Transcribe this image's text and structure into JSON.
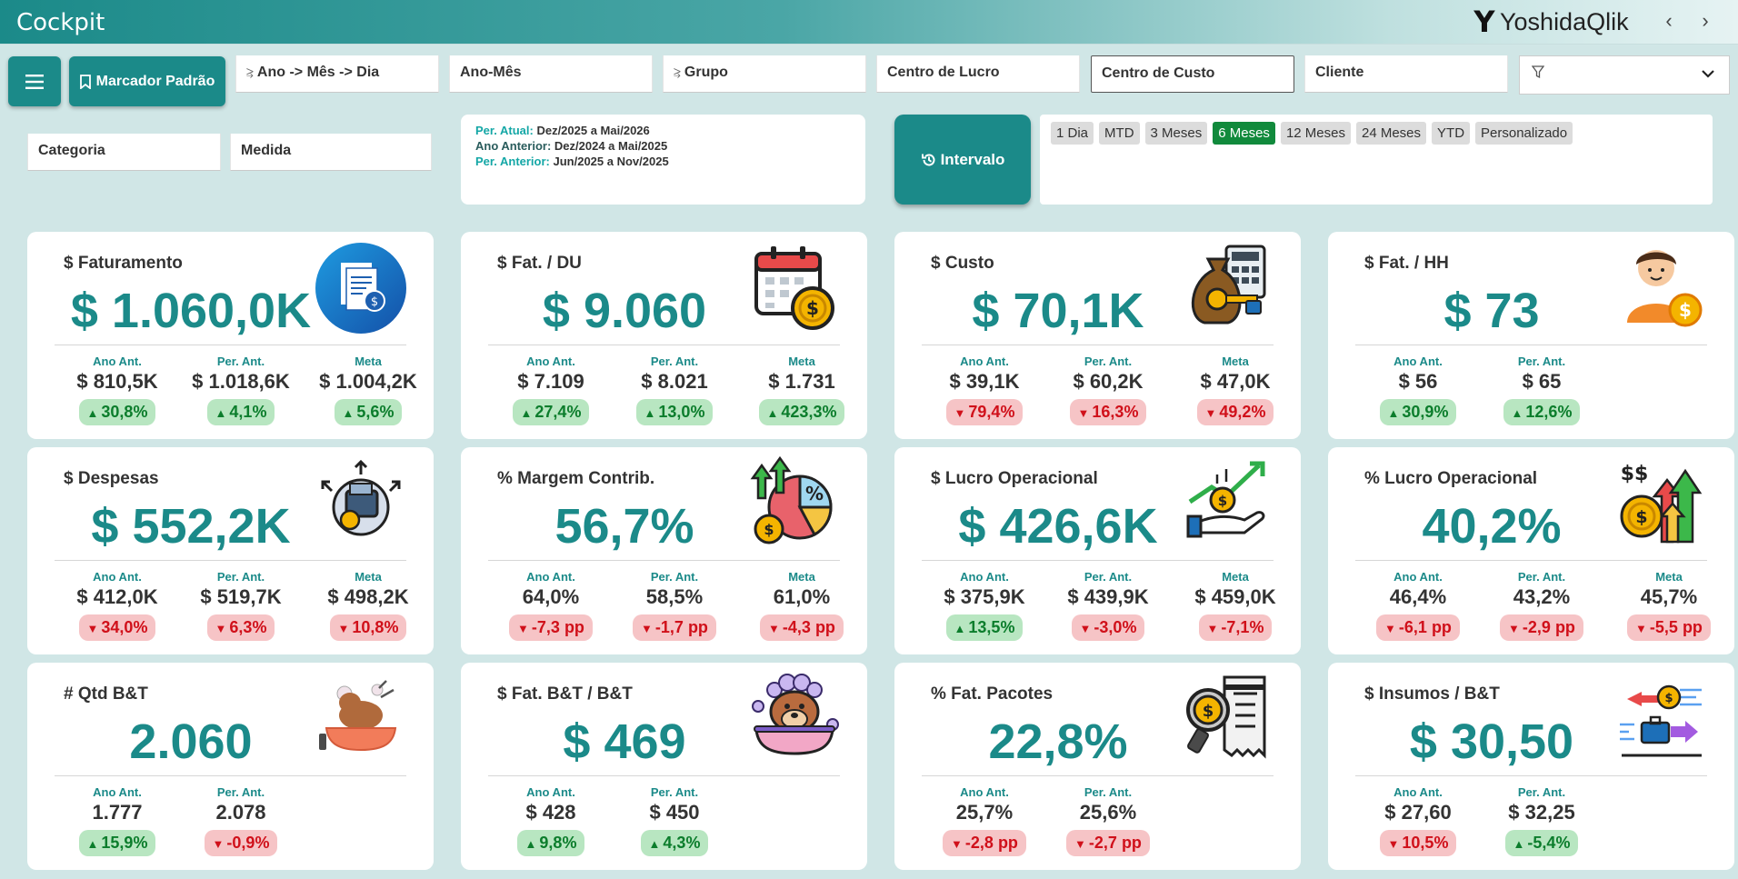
{
  "app": {
    "title": "Cockpit",
    "brand_logo": "Y",
    "brand_name": "YoshidaQlik",
    "nav_back": "‹",
    "nav_forward": "›"
  },
  "toolbar": {
    "menu_icon": "menu-icon",
    "bookmark_label": "Marcador Padrão"
  },
  "filters": {
    "ano_mes_dia": "Ano -> Mês -> Dia",
    "ano_mes": "Ano-Mês",
    "grupo": "Grupo",
    "centro_lucro": "Centro de Lucro",
    "centro_custo": "Centro de Custo",
    "cliente": "Cliente",
    "categoria": "Categoria",
    "medida": "Medida",
    "filter_dropdown_icon": "funnel-icon"
  },
  "period": {
    "atual_label": "Per. Atual:",
    "atual_value": "Dez/2025 a Mai/2026",
    "ano_anterior_label": "Ano Anterior:",
    "ano_anterior_value": "Dez/2024 a Mai/2025",
    "anterior_label": "Per. Anterior:",
    "anterior_value": "Jun/2025 a Nov/2025"
  },
  "interval": {
    "label": "Intervalo",
    "icon": "history-icon"
  },
  "ranges": [
    "1 Dia",
    "MTD",
    "3 Meses",
    "6 Meses",
    "12 Meses",
    "24 Meses",
    "YTD",
    "Personalizado"
  ],
  "selected_range": "6 Meses",
  "colors": {
    "accent": "#1b8a89",
    "up": "#0c7d2c",
    "down": "#d0101a",
    "selected_range": "#118a3c"
  },
  "cards": [
    {
      "title": "$ Faturamento",
      "value": "$ 1.060,0K",
      "icon": "document-money-icon",
      "metrics": [
        {
          "label": "Ano Ant.",
          "value": "$ 810,5K",
          "delta": "30,8%",
          "dir": "up"
        },
        {
          "label": "Per. Ant.",
          "value": "$ 1.018,6K",
          "delta": "4,1%",
          "dir": "up"
        },
        {
          "label": "Meta",
          "value": "$ 1.004,2K",
          "delta": "5,6%",
          "dir": "up"
        }
      ]
    },
    {
      "title": "$ Fat. / DU",
      "value": "$ 9.060",
      "icon": "calendar-coin-icon",
      "metrics": [
        {
          "label": "Ano Ant.",
          "value": "$ 7.109",
          "delta": "27,4%",
          "dir": "up"
        },
        {
          "label": "Per. Ant.",
          "value": "$ 8.021",
          "delta": "13,0%",
          "dir": "up"
        },
        {
          "label": "Meta",
          "value": "$ 1.731",
          "delta": "423,3%",
          "dir": "up"
        }
      ]
    },
    {
      "title": "$ Custo",
      "value": "$ 70,1K",
      "icon": "money-bag-calculator-icon",
      "metrics": [
        {
          "label": "Ano Ant.",
          "value": "$ 39,1K",
          "delta": "79,4%",
          "dir": "down"
        },
        {
          "label": "Per. Ant.",
          "value": "$ 60,2K",
          "delta": "16,3%",
          "dir": "down"
        },
        {
          "label": "Meta",
          "value": "$ 47,0K",
          "delta": "49,2%",
          "dir": "down"
        }
      ]
    },
    {
      "title": "$ Fat. / HH",
      "value": "$ 73",
      "icon": "person-coin-icon",
      "metrics": [
        {
          "label": "Ano Ant.",
          "value": "$ 56",
          "delta": "30,9%",
          "dir": "up"
        },
        {
          "label": "Per. Ant.",
          "value": "$ 65",
          "delta": "12,6%",
          "dir": "up"
        }
      ]
    },
    {
      "title": "$ Despesas",
      "value": "$ 552,2K",
      "icon": "wallet-spread-icon",
      "metrics": [
        {
          "label": "Ano Ant.",
          "value": "$ 412,0K",
          "delta": "34,0%",
          "dir": "down"
        },
        {
          "label": "Per. Ant.",
          "value": "$ 519,7K",
          "delta": "6,3%",
          "dir": "down"
        },
        {
          "label": "Meta",
          "value": "$ 498,2K",
          "delta": "10,8%",
          "dir": "down"
        }
      ]
    },
    {
      "title": "% Margem Contrib.",
      "value": "56,7%",
      "icon": "pie-chart-growth-icon",
      "metrics": [
        {
          "label": "Ano Ant.",
          "value": "64,0%",
          "delta": "-7,3 pp",
          "dir": "down"
        },
        {
          "label": "Per. Ant.",
          "value": "58,5%",
          "delta": "-1,7 pp",
          "dir": "down"
        },
        {
          "label": "Meta",
          "value": "61,0%",
          "delta": "-4,3 pp",
          "dir": "down"
        }
      ]
    },
    {
      "title": "$ Lucro Operacional",
      "value": "$ 426,6K",
      "icon": "hand-coin-growth-icon",
      "metrics": [
        {
          "label": "Ano Ant.",
          "value": "$ 375,9K",
          "delta": "13,5%",
          "dir": "up"
        },
        {
          "label": "Per. Ant.",
          "value": "$ 439,9K",
          "delta": "-3,0%",
          "dir": "down"
        },
        {
          "label": "Meta",
          "value": "$ 459,0K",
          "delta": "-7,1%",
          "dir": "down"
        }
      ]
    },
    {
      "title": "% Lucro Operacional",
      "value": "40,2%",
      "icon": "coins-arrows-up-icon",
      "metrics": [
        {
          "label": "Ano Ant.",
          "value": "46,4%",
          "delta": "-6,1 pp",
          "dir": "down"
        },
        {
          "label": "Per. Ant.",
          "value": "43,2%",
          "delta": "-2,9 pp",
          "dir": "down"
        },
        {
          "label": "Meta",
          "value": "45,7%",
          "delta": "-5,5 pp",
          "dir": "down"
        }
      ]
    },
    {
      "title": "# Qtd B&T",
      "value": "2.060",
      "icon": "dog-bath-icon",
      "metrics": [
        {
          "label": "Ano Ant.",
          "value": "1.777",
          "delta": "15,9%",
          "dir": "up"
        },
        {
          "label": "Per. Ant.",
          "value": "2.078",
          "delta": "-0,9%",
          "dir": "down"
        }
      ]
    },
    {
      "title": "$ Fat. B&T / B&T",
      "value": "$ 469",
      "icon": "dog-bathtub-icon",
      "metrics": [
        {
          "label": "Ano Ant.",
          "value": "$ 428",
          "delta": "9,8%",
          "dir": "up"
        },
        {
          "label": "Per. Ant.",
          "value": "$ 450",
          "delta": "4,3%",
          "dir": "up"
        }
      ]
    },
    {
      "title": "% Fat. Pacotes",
      "value": "22,8%",
      "icon": "magnifier-receipt-icon",
      "metrics": [
        {
          "label": "Ano Ant.",
          "value": "25,7%",
          "delta": "-2,8 pp",
          "dir": "down"
        },
        {
          "label": "Per. Ant.",
          "value": "25,6%",
          "delta": "-2,7 pp",
          "dir": "down"
        }
      ]
    },
    {
      "title": "$ Insumos / B&T",
      "value": "$ 30,50",
      "icon": "exchange-arrows-icon",
      "metrics": [
        {
          "label": "Ano Ant.",
          "value": "$ 27,60",
          "delta": "10,5%",
          "dir": "down"
        },
        {
          "label": "Per. Ant.",
          "value": "$ 32,25",
          "delta": "-5,4%",
          "dir": "up"
        }
      ]
    }
  ]
}
